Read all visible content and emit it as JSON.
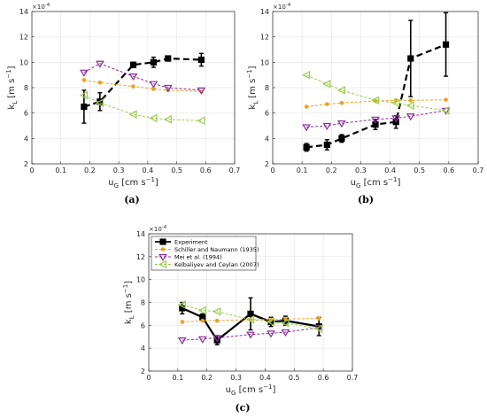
{
  "chart_data": [
    {
      "panel": "(a)",
      "type": "line",
      "xlabel_base": "u",
      "xlabel_sub": "G",
      "xlabel_units": " [cm s",
      "xlabel_exp": "−1",
      "xlabel_close": "]",
      "ylabel_base": "k",
      "ylabel_sub": "L",
      "ylabel_units": " [m s",
      "ylabel_exp": "−1",
      "ylabel_close": "]",
      "ymult": "×10",
      "ymult_exp": "-4",
      "xlim": [
        0,
        0.7
      ],
      "ylim": [
        2,
        14
      ],
      "xticks": [
        "0",
        "0.1",
        "0.2",
        "0.3",
        "0.4",
        "0.5",
        "0.6",
        "0.7"
      ],
      "yticks": [
        "2",
        "4",
        "6",
        "8",
        "10",
        "12",
        "14"
      ],
      "grid": true,
      "series": [
        {
          "key": "exp",
          "x": [
            0.18,
            0.235,
            0.35,
            0.42,
            0.47,
            0.585
          ],
          "y": [
            6.5,
            6.9,
            9.8,
            10.0,
            10.3,
            10.2
          ],
          "err": [
            1.3,
            0.7,
            0.2,
            0.4,
            0.2,
            0.5
          ]
        },
        {
          "key": "schiller",
          "x": [
            0.18,
            0.235,
            0.35,
            0.42,
            0.47,
            0.585
          ],
          "y": [
            8.6,
            8.4,
            8.1,
            7.9,
            7.8,
            7.7
          ]
        },
        {
          "key": "mei",
          "x": [
            0.18,
            0.235,
            0.35,
            0.42,
            0.47,
            0.585
          ],
          "y": [
            9.2,
            9.9,
            8.9,
            8.3,
            8.0,
            7.8
          ]
        },
        {
          "key": "kelbaliyev",
          "x": [
            0.18,
            0.235,
            0.35,
            0.42,
            0.47,
            0.585
          ],
          "y": [
            7.4,
            6.8,
            5.9,
            5.6,
            5.5,
            5.4
          ]
        }
      ]
    },
    {
      "panel": "(b)",
      "type": "line",
      "xlabel_base": "u",
      "xlabel_sub": "G",
      "xlabel_units": " [cm s",
      "xlabel_exp": "−1",
      "xlabel_close": "]",
      "ylabel_base": "k",
      "ylabel_sub": "L",
      "ylabel_units": " [m s",
      "ylabel_exp": "−1",
      "ylabel_close": "]",
      "ymult": "×10",
      "ymult_exp": "-4",
      "xlim": [
        0,
        0.7
      ],
      "ylim": [
        2,
        14
      ],
      "xticks": [
        "0",
        "0.1",
        "0.2",
        "0.3",
        "0.4",
        "0.5",
        "0.6",
        "0.7"
      ],
      "yticks": [
        "2",
        "4",
        "6",
        "8",
        "10",
        "12",
        "14"
      ],
      "grid": true,
      "series": [
        {
          "key": "exp",
          "x": [
            0.115,
            0.185,
            0.235,
            0.35,
            0.42,
            0.47,
            0.59
          ],
          "y": [
            3.3,
            3.5,
            4.0,
            5.1,
            5.3,
            10.3,
            11.4
          ],
          "err": [
            0.3,
            0.4,
            0.3,
            0.4,
            0.5,
            3.0,
            2.5
          ]
        },
        {
          "key": "schiller",
          "x": [
            0.115,
            0.185,
            0.235,
            0.35,
            0.42,
            0.47,
            0.59
          ],
          "y": [
            6.5,
            6.7,
            6.8,
            6.95,
            7.0,
            7.0,
            7.05
          ]
        },
        {
          "key": "mei",
          "x": [
            0.115,
            0.185,
            0.235,
            0.35,
            0.42,
            0.47,
            0.59
          ],
          "y": [
            4.9,
            5.0,
            5.2,
            5.5,
            5.6,
            5.75,
            6.2
          ]
        },
        {
          "key": "kelbaliyev",
          "x": [
            0.115,
            0.185,
            0.235,
            0.35,
            0.42,
            0.47,
            0.59
          ],
          "y": [
            9.0,
            8.3,
            7.8,
            7.0,
            6.8,
            6.6,
            6.2
          ]
        }
      ]
    },
    {
      "panel": "(c)",
      "type": "line",
      "xlabel_base": "u",
      "xlabel_sub": "G",
      "xlabel_units": " [cm s",
      "xlabel_exp": "−1",
      "xlabel_close": "]",
      "ylabel_base": "k",
      "ylabel_sub": "L",
      "ylabel_units": " [m s",
      "ylabel_exp": "−1",
      "ylabel_close": "]",
      "ymult": "×10",
      "ymult_exp": "-4",
      "xlim": [
        0,
        0.7
      ],
      "ylim": [
        2,
        14
      ],
      "xticks": [
        "0",
        "0.1",
        "0.2",
        "0.3",
        "0.4",
        "0.5",
        "0.6",
        "0.7"
      ],
      "yticks": [
        "2",
        "4",
        "6",
        "8",
        "10",
        "12",
        "14"
      ],
      "grid": true,
      "legend_position": "top-left",
      "series": [
        {
          "key": "exp",
          "name": "Experiment",
          "x": [
            0.115,
            0.185,
            0.235,
            0.35,
            0.42,
            0.47,
            0.585
          ],
          "y": [
            7.5,
            6.7,
            4.7,
            7.0,
            6.3,
            6.4,
            5.9
          ],
          "err": [
            0.5,
            0.3,
            0.4,
            1.4,
            0.4,
            0.4,
            0.8
          ]
        },
        {
          "key": "schiller",
          "name": "Schiller and Naumann (1935)",
          "x": [
            0.115,
            0.185,
            0.235,
            0.35,
            0.42,
            0.47,
            0.585
          ],
          "y": [
            6.3,
            6.4,
            6.4,
            6.5,
            6.5,
            6.55,
            6.6
          ]
        },
        {
          "key": "mei",
          "name": "Mei et al. (1994)",
          "x": [
            0.115,
            0.185,
            0.235,
            0.35,
            0.42,
            0.47,
            0.585
          ],
          "y": [
            4.7,
            4.8,
            4.9,
            5.2,
            5.3,
            5.4,
            5.8
          ]
        },
        {
          "key": "kelbaliyev",
          "name": "Kelbaliyev and Ceylan  (2007)",
          "x": [
            0.115,
            0.185,
            0.235,
            0.35,
            0.42,
            0.47,
            0.585
          ],
          "y": [
            7.8,
            7.3,
            7.2,
            6.5,
            6.3,
            6.2,
            5.7
          ]
        }
      ]
    }
  ],
  "styles": {
    "exp": {
      "color": "#000000",
      "marker": "square",
      "dash": "",
      "width": 2.2
    },
    "schiller": {
      "color": "#f0a020",
      "marker": "circle",
      "dash": "3,2",
      "width": 1
    },
    "mei": {
      "color": "#8b2a9a",
      "marker": "triangle-down",
      "dash": "3,2",
      "width": 1
    },
    "kelbaliyev": {
      "color": "#9acd50",
      "marker": "triangle-left",
      "dash": "3,2",
      "width": 1
    }
  },
  "exp_dash_ab": "7,4"
}
